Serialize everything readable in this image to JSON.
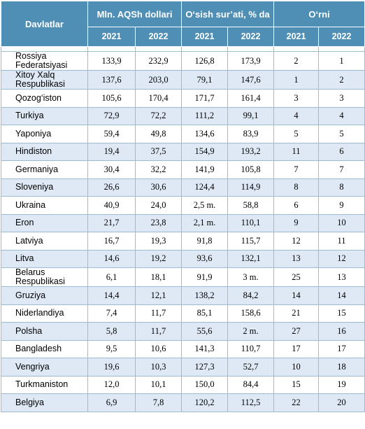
{
  "header": {
    "country": "Davlatlar",
    "groups": [
      "Mln. AQSh dollari",
      "O‘sish sur’ati, % da",
      "O‘rni"
    ],
    "years": [
      "2021",
      "2022",
      "2021",
      "2022",
      "2021",
      "2022"
    ]
  },
  "rows": [
    {
      "name": "Rossiya Federatsiyasi",
      "v2021": "133,9",
      "v2022": "232,9",
      "g2021": "126,8",
      "g2022": "173,9",
      "r2021": "2",
      "r2022": "1"
    },
    {
      "name": "Xitoy Xalq Respublikasi",
      "v2021": "137,6",
      "v2022": "203,0",
      "g2021": "79,1",
      "g2022": "147,6",
      "r2021": "1",
      "r2022": "2"
    },
    {
      "name": "Qozog‘iston",
      "v2021": "105,6",
      "v2022": "170,4",
      "g2021": "171,7",
      "g2022": "161,4",
      "r2021": "3",
      "r2022": "3"
    },
    {
      "name": "Turkiya",
      "v2021": "72,9",
      "v2022": "72,2",
      "g2021": "111,2",
      "g2022": "99,1",
      "r2021": "4",
      "r2022": "4"
    },
    {
      "name": "Yaponiya",
      "v2021": "59,4",
      "v2022": "49,8",
      "g2021": "134,6",
      "g2022": "83,9",
      "r2021": "5",
      "r2022": "5"
    },
    {
      "name": "Hindiston",
      "v2021": "19,4",
      "v2022": "37,5",
      "g2021": "154,9",
      "g2022": "193,2",
      "r2021": "11",
      "r2022": "6"
    },
    {
      "name": "Germaniya",
      "v2021": "30,4",
      "v2022": "32,2",
      "g2021": "141,9",
      "g2022": "105,8",
      "r2021": "7",
      "r2022": "7"
    },
    {
      "name": "Sloveniya",
      "v2021": "26,6",
      "v2022": "30,6",
      "g2021": "124,4",
      "g2022": "114,9",
      "r2021": "8",
      "r2022": "8"
    },
    {
      "name": "Ukraina",
      "v2021": "40,9",
      "v2022": "24,0",
      "g2021": "2,5 m.",
      "g2022": "58,8",
      "r2021": "6",
      "r2022": "9"
    },
    {
      "name": "Eron",
      "v2021": "21,7",
      "v2022": "23,8",
      "g2021": "2,1 m.",
      "g2022": "110,1",
      "r2021": "9",
      "r2022": "10"
    },
    {
      "name": "Latviya",
      "v2021": "16,7",
      "v2022": "19,3",
      "g2021": "91,8",
      "g2022": "115,7",
      "r2021": "12",
      "r2022": "11"
    },
    {
      "name": "Litva",
      "v2021": "14,6",
      "v2022": "19,2",
      "g2021": "93,6",
      "g2022": "132,1",
      "r2021": "13",
      "r2022": "12"
    },
    {
      "name": "Belarus Respublikasi",
      "v2021": "6,1",
      "v2022": "18,1",
      "g2021": "91,9",
      "g2022": "3 m.",
      "r2021": "25",
      "r2022": "13"
    },
    {
      "name": "Gruziya",
      "v2021": "14,4",
      "v2022": "12,1",
      "g2021": "138,2",
      "g2022": "84,2",
      "r2021": "14",
      "r2022": "14"
    },
    {
      "name": "Niderlandiya",
      "v2021": "7,4",
      "v2022": "11,7",
      "g2021": "85,1",
      "g2022": "158,6",
      "r2021": "21",
      "r2022": "15"
    },
    {
      "name": "Polsha",
      "v2021": "5,8",
      "v2022": "11,7",
      "g2021": "55,6",
      "g2022": "2 m.",
      "r2021": "27",
      "r2022": "16"
    },
    {
      "name": "Bangladesh",
      "v2021": "9,5",
      "v2022": "10,6",
      "g2021": "141,3",
      "g2022": "110,7",
      "r2021": "17",
      "r2022": "17"
    },
    {
      "name": "Vengriya",
      "v2021": "19,6",
      "v2022": "10,3",
      "g2021": "127,3",
      "g2022": "52,7",
      "r2021": "10",
      "r2022": "18"
    },
    {
      "name": "Turkmaniston",
      "v2021": "12,0",
      "v2022": "10,1",
      "g2021": "150,0",
      "g2022": "84,4",
      "r2021": "15",
      "r2022": "19"
    },
    {
      "name": "Belgiya",
      "v2021": "6,9",
      "v2022": "7,8",
      "g2021": "120,2",
      "g2022": "112,5",
      "r2021": "22",
      "r2022": "20"
    }
  ],
  "colors": {
    "header_bg": "#4f8fb5",
    "stripe": "#dfe9f5",
    "border": "#9dbcd2"
  }
}
